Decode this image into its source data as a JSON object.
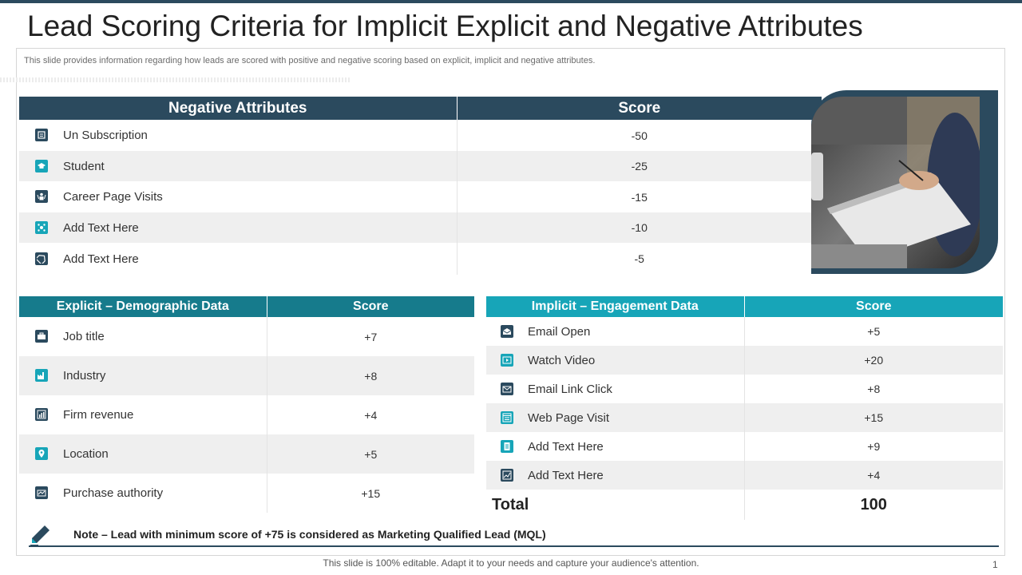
{
  "title": "Lead Scoring Criteria for Implicit Explicit and Negative Attributes",
  "subtitle": "This slide provides information regarding how leads are scored with positive and negative scoring based on explicit, implicit and negative attributes.",
  "negative": {
    "header_attr": "Negative Attributes",
    "header_score": "Score",
    "rows": [
      {
        "label": "Un Subscription",
        "score": "-50",
        "icon": "unsubscribe-icon"
      },
      {
        "label": "Student",
        "score": "-25",
        "icon": "graduation-cap-icon"
      },
      {
        "label": "Career Page Visits",
        "score": "-15",
        "icon": "career-icon"
      },
      {
        "label": "Add Text Here",
        "score": "-10",
        "icon": "network-icon"
      },
      {
        "label": "Add Text Here",
        "score": "-5",
        "icon": "tag-icon"
      }
    ]
  },
  "explicit": {
    "header_attr": "Explicit – Demographic Data",
    "header_score": "Score",
    "rows": [
      {
        "label": "Job title",
        "score": "+7",
        "icon": "briefcase-icon"
      },
      {
        "label": "Industry",
        "score": "+8",
        "icon": "factory-icon"
      },
      {
        "label": "Firm revenue",
        "score": "+4",
        "icon": "revenue-icon"
      },
      {
        "label": "Location",
        "score": "+5",
        "icon": "location-pin-icon"
      },
      {
        "label": "Purchase authority",
        "score": "+15",
        "icon": "authority-icon"
      }
    ]
  },
  "implicit": {
    "header_attr": "Implicit – Engagement Data",
    "header_score": "Score",
    "rows": [
      {
        "label": "Email Open",
        "score": "+5",
        "icon": "email-open-icon"
      },
      {
        "label": "Watch Video",
        "score": "+20",
        "icon": "video-icon"
      },
      {
        "label": "Email Link Click",
        "score": "+8",
        "icon": "email-link-icon"
      },
      {
        "label": "Web Page Visit",
        "score": "+15",
        "icon": "web-page-icon"
      },
      {
        "label": "Add Text Here",
        "score": "+9",
        "icon": "document-icon"
      },
      {
        "label": "Add Text Here",
        "score": "+4",
        "icon": "chart-icon"
      }
    ],
    "total_label": "Total",
    "total_value": "100"
  },
  "note": "Note – Lead with minimum score of +75 is considered as Marketing Qualified Lead (MQL)",
  "footer": "This slide is 100% editable. Adapt it to your needs and capture your audience's attention.",
  "page_number": "1",
  "colors": {
    "dark_navy": "#2b4a5e",
    "dark_teal": "#167b8c",
    "light_teal": "#17a5b8"
  }
}
